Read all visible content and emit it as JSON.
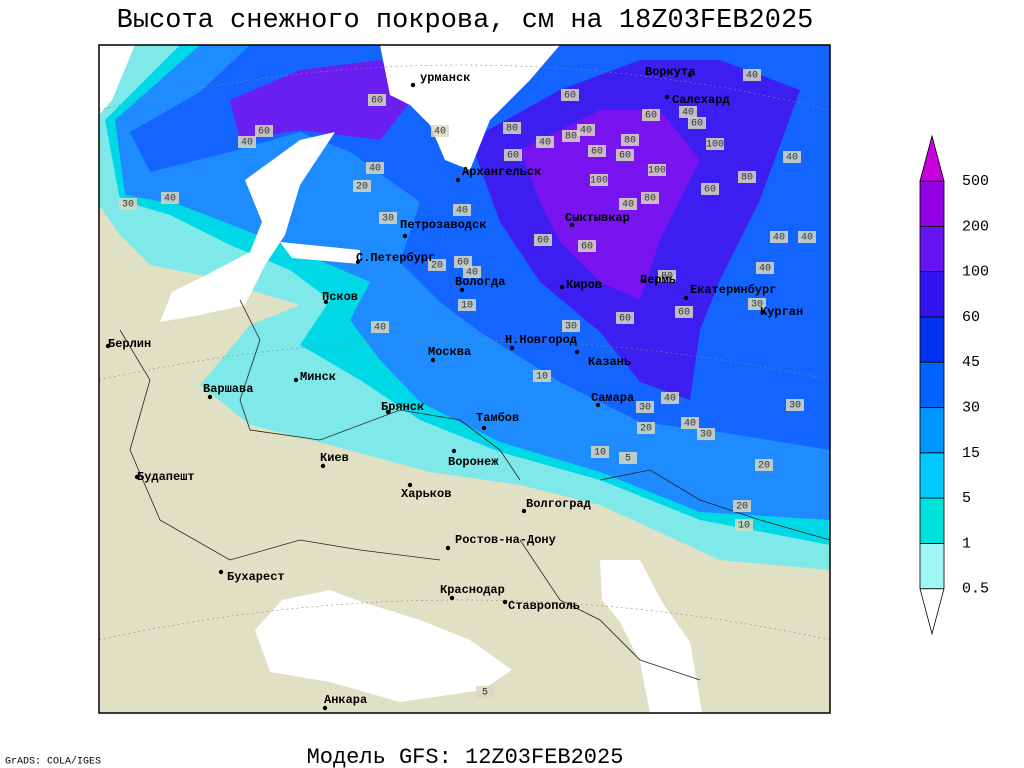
{
  "header": {
    "title": "Высота снежного покрова, см на 18Z03FEB2025"
  },
  "footer": {
    "model": "Модель GFS: 12Z03FEB2025",
    "credit": "GrADS: COLA/IGES"
  },
  "map": {
    "cities": [
      "урманск",
      "Воркута",
      "Салехард",
      "Архангельск",
      "Сыктывкар",
      "Петрозаводск",
      "С.Петербург",
      "Вологда",
      "Киров",
      "Пермь",
      "Екатеринбург",
      "Курган",
      "Псков",
      "Берлин",
      "Москва",
      "Н.Новгород",
      "Казань",
      "Минск",
      "Варшава",
      "Брянск",
      "Тамбов",
      "Самара",
      "Киев",
      "Воронеж",
      "Будапешт",
      "Харьков",
      "Волгоград",
      "Ростов-на-Дону",
      "Бухарест",
      "Краснодар",
      "Ставрополь",
      "Анкара"
    ],
    "contour_labels": [
      40,
      60,
      60,
      60,
      40,
      40,
      80,
      40,
      80,
      40,
      60,
      60,
      60,
      40,
      60,
      100,
      80,
      100,
      100,
      40,
      80,
      60,
      80,
      40,
      40,
      20,
      40,
      30,
      60,
      40,
      30,
      60,
      60,
      40,
      40,
      40,
      60,
      20,
      40,
      80,
      60,
      60,
      30,
      40,
      10,
      10,
      30,
      40,
      30,
      40,
      30,
      20,
      30,
      10,
      5,
      20,
      20,
      10,
      5
    ]
  },
  "legend": {
    "levels": [
      0.5,
      1,
      5,
      15,
      30,
      45,
      60,
      100,
      200,
      500
    ],
    "colors": [
      "#ffffff",
      "#a0f5f5",
      "#00e1dc",
      "#00c8ff",
      "#0096ff",
      "#0064ff",
      "#0032f0",
      "#3214f0",
      "#6414f0",
      "#9600e6",
      "#c800e0"
    ]
  }
}
